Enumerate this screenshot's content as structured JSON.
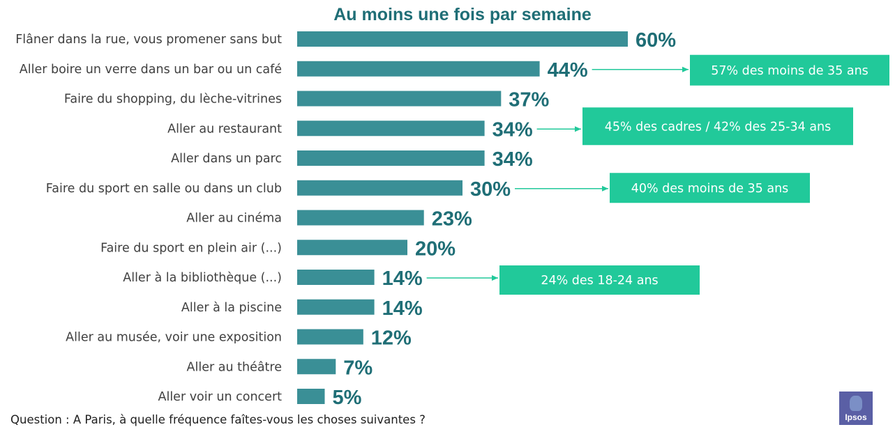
{
  "chart_data": {
    "type": "bar",
    "orientation": "horizontal",
    "title": "Au moins une fois par semaine",
    "categories": [
      "Flâner dans la rue, vous promener sans but",
      "Aller boire un verre dans un bar ou un café",
      "Faire du shopping, du lèche-vitrines",
      "Aller au restaurant",
      "Aller dans un parc",
      "Faire du sport en salle ou dans un club",
      "Aller au cinéma",
      "Faire du sport en plein air (...)",
      "Aller à la bibliothèque (...)",
      "Aller à la piscine",
      "Aller au musée, voir une exposition",
      "Aller au théâtre",
      "Aller voir un concert"
    ],
    "values": [
      60,
      44,
      37,
      34,
      34,
      30,
      23,
      20,
      14,
      14,
      12,
      7,
      5
    ],
    "value_labels": [
      "60%",
      "44%",
      "37%",
      "34%",
      "34%",
      "30%",
      "23%",
      "20%",
      "14%",
      "14%",
      "12%",
      "7%",
      "5%"
    ],
    "unit": "%",
    "xlim": [
      0,
      60
    ],
    "grid": false,
    "legend": "none",
    "annotations": [
      {
        "category_index": 1,
        "text": "57% des moins de 35 ans"
      },
      {
        "category_index": 3,
        "text": "45% des cadres / 42% des 25-34 ans"
      },
      {
        "category_index": 5,
        "text": "40% des moins de 35 ans"
      },
      {
        "category_index": 8,
        "text": "24% des 18-24 ans"
      }
    ]
  },
  "footnote": "Question : A Paris, à quelle fréquence faîtes-vous les choses suivantes ?",
  "logo_text": "Ipsos",
  "colors": {
    "bar": "#3a8f96",
    "value_text": "#1f6e76",
    "title": "#1f6e76",
    "category_text": "#404040",
    "annotation_box": "#21c99a",
    "annotation_text": "#ffffff",
    "arrow": "#21c99a",
    "logo_bg": "#5a5fa5"
  }
}
